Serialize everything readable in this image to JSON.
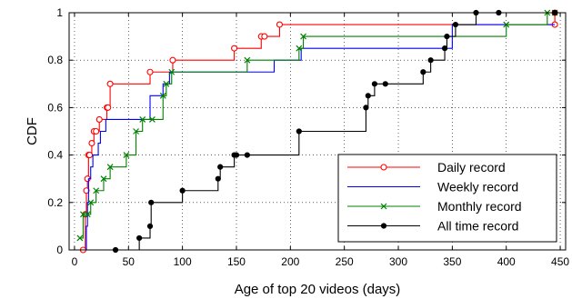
{
  "chart_data": {
    "type": "line",
    "step": true,
    "xlabel": "Age of top 20 videos (days)",
    "ylabel": "CDF",
    "xlim": [
      -5,
      455
    ],
    "ylim": [
      0,
      1
    ],
    "xticks": [
      0,
      50,
      100,
      150,
      200,
      250,
      300,
      350,
      400,
      450
    ],
    "yticks": [
      0,
      0.2,
      0.4,
      0.6,
      0.8,
      1
    ],
    "xtick_labels": [
      "0",
      "50",
      "100",
      "150",
      "200",
      "250",
      "300",
      "350",
      "400",
      "450"
    ],
    "ytick_labels": [
      "0",
      "0.2",
      "0.4",
      "0.6",
      "0.8",
      "1"
    ],
    "grid": "dotted",
    "legend_position": "lower-right",
    "series": [
      {
        "name": "Daily record",
        "color": "#ff0000",
        "marker": "circle-open",
        "x": [
          8,
          10,
          11,
          12,
          13,
          14,
          16,
          18,
          20,
          23,
          30,
          31,
          33,
          70,
          91,
          148,
          173,
          176,
          190,
          445,
          445
        ],
        "y": [
          0,
          0.15,
          0.25,
          0.3,
          0.4,
          0.4,
          0.45,
          0.5,
          0.5,
          0.55,
          0.6,
          0.6,
          0.7,
          0.75,
          0.8,
          0.85,
          0.9,
          0.9,
          0.95,
          0.95,
          1
        ]
      },
      {
        "name": "Weekly record",
        "color": "#0000ff",
        "marker": "none",
        "x": [
          8,
          11,
          12,
          13,
          15,
          17,
          22,
          24,
          29,
          36,
          70,
          82,
          88,
          92,
          148,
          185,
          210,
          350,
          445
        ],
        "y": [
          0,
          0.1,
          0.2,
          0.3,
          0.35,
          0.4,
          0.45,
          0.5,
          0.55,
          0.55,
          0.65,
          0.7,
          0.75,
          0.75,
          0.75,
          0.8,
          0.85,
          0.95,
          0.95
        ]
      },
      {
        "name": "Monthly record",
        "color": "#008000",
        "marker": "x",
        "x": [
          5,
          8,
          12,
          15,
          20,
          27,
          33,
          48,
          57,
          63,
          72,
          82,
          85,
          90,
          160,
          208,
          212,
          400,
          438,
          445
        ],
        "y": [
          0.05,
          0.15,
          0.15,
          0.2,
          0.25,
          0.3,
          0.35,
          0.4,
          0.5,
          0.55,
          0.55,
          0.65,
          0.7,
          0.75,
          0.8,
          0.85,
          0.9,
          0.95,
          1,
          1
        ]
      },
      {
        "name": "All time record",
        "color": "#000000",
        "marker": "dot",
        "x": [
          38,
          60,
          70,
          71,
          100,
          133,
          135,
          148,
          150,
          160,
          208,
          270,
          272,
          278,
          288,
          323,
          330,
          343,
          345,
          353,
          372,
          393,
          445
        ],
        "y": [
          0,
          0.05,
          0.1,
          0.2,
          0.25,
          0.3,
          0.35,
          0.4,
          0.4,
          0.4,
          0.5,
          0.6,
          0.65,
          0.7,
          0.7,
          0.75,
          0.8,
          0.85,
          0.9,
          0.95,
          1,
          1,
          1
        ]
      }
    ]
  }
}
